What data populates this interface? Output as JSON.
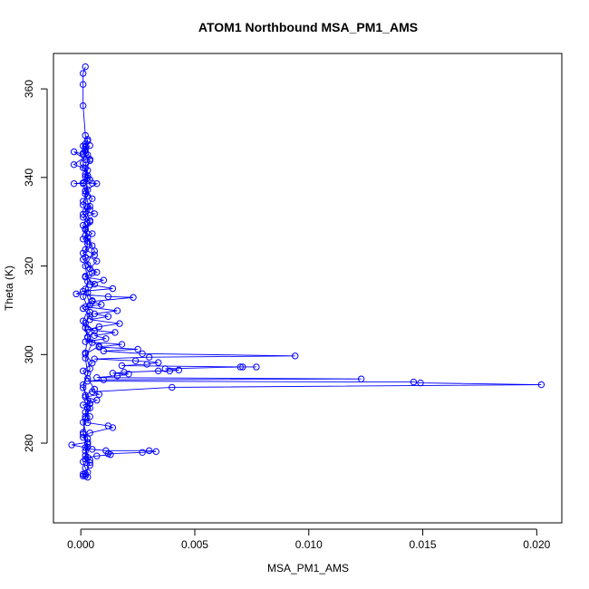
{
  "chart_data": {
    "type": "line",
    "title": "ATOM1 Northbound MSA_PM1_AMS",
    "xlabel": "MSA_PM1_AMS",
    "ylabel": "Theta (K)",
    "xlim": [
      -0.0012,
      0.0211
    ],
    "ylim": [
      262,
      368
    ],
    "x_ticks": [
      0.0,
      0.005,
      0.01,
      0.015,
      0.02
    ],
    "x_tick_labels": [
      "0.000",
      "0.005",
      "0.010",
      "0.015",
      "0.020"
    ],
    "y_ticks": [
      280,
      300,
      320,
      340,
      360
    ],
    "y_tick_labels": [
      "280",
      "300",
      "320",
      "340",
      "360"
    ],
    "grid": false,
    "marker": "open-circle",
    "colors": {
      "series": "#0000ff",
      "axes": "#000000",
      "background": "#ffffff"
    },
    "series": [
      {
        "points": [
          [
            0.0002,
            365.0
          ],
          [
            0.0001,
            363.5
          ],
          [
            0.0001,
            361.0
          ],
          [
            0.0001,
            356.2
          ],
          [
            0.0002,
            349.5
          ],
          [
            0.0003,
            348.2
          ],
          [
            0.0001,
            347.1
          ],
          [
            0.0002,
            346.0
          ],
          [
            0.0004,
            347.2
          ],
          [
            0.0001,
            345.2
          ],
          [
            -0.0003,
            345.8
          ],
          [
            0.0002,
            344.0
          ],
          [
            0.0003,
            345.1
          ],
          [
            -0.0003,
            342.9
          ],
          [
            0.0001,
            342.2
          ],
          [
            0.0003,
            341.6
          ],
          [
            0.0002,
            340.2
          ],
          [
            0.0004,
            339.5
          ],
          [
            0.0001,
            338.8
          ],
          [
            -0.0003,
            338.6
          ],
          [
            0.0005,
            338.7
          ],
          [
            0.0007,
            338.6
          ],
          [
            0.0002,
            337.0
          ],
          [
            0.0003,
            335.8
          ],
          [
            0.0001,
            334.6
          ],
          [
            0.0004,
            333.5
          ],
          [
            0.0002,
            332.3
          ],
          [
            0.0006,
            331.8
          ],
          [
            0.0001,
            331.0
          ],
          [
            0.0003,
            329.6
          ],
          [
            0.0002,
            328.4
          ],
          [
            0.0005,
            327.3
          ],
          [
            0.0001,
            326.1
          ],
          [
            0.0003,
            325.0
          ],
          [
            0.0002,
            323.7
          ],
          [
            0.0006,
            322.5
          ],
          [
            0.0001,
            321.5
          ],
          [
            0.0003,
            320.3
          ],
          [
            0.0007,
            318.6
          ],
          [
            0.0002,
            317.5
          ],
          [
            0.001,
            316.8
          ],
          [
            0.0004,
            315.8
          ],
          [
            0.0014,
            314.9
          ],
          [
            0.0001,
            314.3
          ],
          [
            -0.0002,
            313.7
          ],
          [
            0.0012,
            313.1
          ],
          [
            0.0023,
            312.9
          ],
          [
            0.0005,
            312.0
          ],
          [
            0.0009,
            311.3
          ],
          [
            0.0002,
            310.8
          ],
          [
            0.0016,
            309.9
          ],
          [
            0.0006,
            309.2
          ],
          [
            0.0012,
            308.6
          ],
          [
            0.0004,
            307.9
          ],
          [
            0.0017,
            307.0
          ],
          [
            0.0008,
            306.3
          ],
          [
            0.0003,
            305.6
          ],
          [
            0.0015,
            305.0
          ],
          [
            0.0006,
            304.3
          ],
          [
            0.0011,
            303.6
          ],
          [
            0.0002,
            302.9
          ],
          [
            0.0018,
            302.3
          ],
          [
            0.0008,
            301.7
          ],
          [
            0.0025,
            301.2
          ],
          [
            0.001,
            300.8
          ],
          [
            0.0027,
            300.2
          ],
          [
            0.0094,
            299.7
          ],
          [
            0.003,
            299.4
          ],
          [
            0.0006,
            299.0
          ],
          [
            0.0024,
            298.6
          ],
          [
            0.0034,
            298.2
          ],
          [
            0.0029,
            297.8
          ],
          [
            0.0018,
            297.5
          ],
          [
            0.0071,
            297.2
          ],
          [
            0.0077,
            297.2
          ],
          [
            0.007,
            297.2
          ],
          [
            0.0037,
            296.8
          ],
          [
            0.0043,
            296.5
          ],
          [
            0.0039,
            296.3
          ],
          [
            0.0034,
            296.3
          ],
          [
            0.0019,
            296.0
          ],
          [
            0.0014,
            295.8
          ],
          [
            0.0021,
            295.6
          ],
          [
            0.0016,
            295.2
          ],
          [
            0.0007,
            294.8
          ],
          [
            0.0123,
            294.5
          ],
          [
            0.001,
            294.3
          ],
          [
            0.0003,
            294.0
          ],
          [
            0.0146,
            293.8
          ],
          [
            0.0149,
            293.6
          ],
          [
            0.0202,
            293.2
          ],
          [
            0.004,
            292.6
          ],
          [
            0.0005,
            291.6
          ],
          [
            0.0008,
            291.0
          ],
          [
            0.0002,
            290.4
          ],
          [
            0.0007,
            289.7
          ],
          [
            0.0004,
            289.0
          ],
          [
            0.0001,
            288.6
          ],
          [
            0.0003,
            287.8
          ],
          [
            0.0002,
            287.0
          ],
          [
            0.0004,
            286.0
          ],
          [
            0.0003,
            284.6
          ],
          [
            0.0012,
            283.9
          ],
          [
            0.0014,
            283.5
          ],
          [
            0.0004,
            282.3
          ],
          [
            0.0001,
            281.3
          ],
          [
            0.0003,
            280.2
          ],
          [
            -0.0004,
            279.6
          ],
          [
            0.0002,
            279.0
          ],
          [
            0.0005,
            278.6
          ],
          [
            0.0011,
            278.3
          ],
          [
            0.003,
            278.3
          ],
          [
            0.0033,
            278.1
          ],
          [
            0.0027,
            277.9
          ],
          [
            0.0012,
            277.6
          ],
          [
            0.0013,
            277.4
          ],
          [
            0.0007,
            277.1
          ],
          [
            0.0003,
            276.8
          ],
          [
            0.0004,
            276.2
          ],
          [
            0.0001,
            275.8
          ],
          [
            0.0002,
            274.4
          ],
          [
            0.0003,
            273.4
          ],
          [
            0.0001,
            273.0
          ],
          [
            0.0002,
            272.6
          ],
          [
            0.0003,
            272.3
          ],
          [
            0.0001,
            272.6
          ],
          [
            0.0002,
            273.1
          ],
          [
            0.0004,
            275.6
          ],
          [
            0.0002,
            278.2
          ],
          [
            0.0003,
            281.0
          ],
          [
            0.0001,
            284.7
          ],
          [
            0.0004,
            287.9
          ],
          [
            0.0002,
            290.8
          ],
          [
            0.0006,
            292.2
          ],
          [
            0.0003,
            294.6
          ],
          [
            0.0001,
            296.3
          ],
          [
            0.0005,
            298.1
          ],
          [
            0.0002,
            300.1
          ],
          [
            0.0008,
            301.9
          ],
          [
            0.0003,
            303.8
          ],
          [
            0.0006,
            305.3
          ],
          [
            0.0002,
            307.1
          ],
          [
            0.0004,
            308.8
          ],
          [
            0.0001,
            310.4
          ],
          [
            0.0005,
            312.2
          ],
          [
            0.0003,
            314.0
          ],
          [
            0.0006,
            315.9
          ],
          [
            0.0002,
            317.7
          ],
          [
            0.0004,
            319.4
          ],
          [
            0.0007,
            321.1
          ],
          [
            0.0001,
            322.9
          ],
          [
            0.0005,
            324.6
          ],
          [
            0.0003,
            326.4
          ],
          [
            0.0002,
            328.2
          ],
          [
            0.0004,
            330.0
          ],
          [
            0.0001,
            331.7
          ],
          [
            0.0003,
            333.4
          ],
          [
            0.0005,
            335.2
          ],
          [
            0.0002,
            336.9
          ],
          [
            0.0001,
            338.6
          ],
          [
            0.0003,
            340.4
          ],
          [
            0.0002,
            342.1
          ],
          [
            0.0004,
            343.8
          ],
          [
            0.0001,
            345.5
          ],
          [
            0.0002,
            347.0
          ],
          [
            0.0003,
            348.6
          ],
          [
            0.0002,
            346.4
          ],
          [
            0.0001,
            343.2
          ],
          [
            0.0003,
            339.9
          ],
          [
            0.0002,
            336.3
          ],
          [
            0.0004,
            332.7
          ],
          [
            0.0001,
            329.2
          ],
          [
            0.0003,
            325.6
          ],
          [
            0.0002,
            322.0
          ],
          [
            0.0005,
            318.4
          ],
          [
            0.0002,
            314.8
          ],
          [
            0.0004,
            311.2
          ],
          [
            0.0001,
            307.6
          ],
          [
            0.0003,
            304.0
          ],
          [
            0.0002,
            300.4
          ],
          [
            0.0004,
            296.8
          ],
          [
            0.0001,
            293.2
          ],
          [
            0.0003,
            289.6
          ],
          [
            0.0002,
            286.0
          ],
          [
            0.0001,
            282.4
          ],
          [
            0.0003,
            279.8
          ],
          [
            0.0002,
            277.2
          ],
          [
            0.0004,
            275.0
          ],
          [
            0.0002,
            276.4
          ],
          [
            0.0003,
            279.1
          ],
          [
            0.0001,
            282.0
          ],
          [
            0.0002,
            285.5
          ],
          [
            0.0004,
            288.9
          ],
          [
            0.0001,
            292.5
          ],
          [
            0.0003,
            295.8
          ],
          [
            0.0002,
            299.2
          ],
          [
            0.0005,
            302.7
          ],
          [
            0.0002,
            306.1
          ],
          [
            0.0004,
            309.6
          ],
          [
            0.0001,
            313.1
          ],
          [
            0.0003,
            316.5
          ],
          [
            0.0002,
            320.0
          ],
          [
            0.0006,
            323.4
          ],
          [
            0.0002,
            326.9
          ],
          [
            0.0004,
            330.3
          ],
          [
            0.0001,
            333.8
          ],
          [
            0.0003,
            337.2
          ],
          [
            0.0002,
            340.7
          ],
          [
            0.0004,
            344.1
          ],
          [
            0.0002,
            347.6
          ]
        ]
      }
    ]
  }
}
